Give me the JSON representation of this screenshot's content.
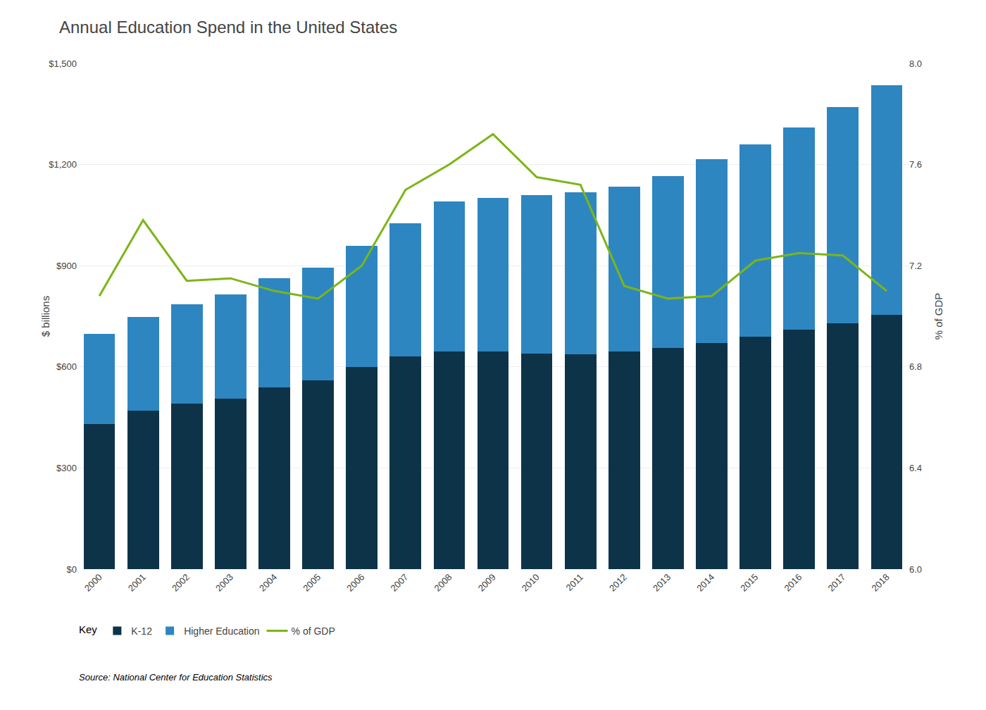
{
  "chart_data": {
    "type": "bar",
    "title": "Annual Education Spend in the United States",
    "source": "Source: National Center for Education Statistics",
    "legend_title": "Key",
    "categories": [
      "2000",
      "2001",
      "2002",
      "2003",
      "2004",
      "2005",
      "2006",
      "2007",
      "2008",
      "2009",
      "2010",
      "2011",
      "2012",
      "2013",
      "2014",
      "2015",
      "2016",
      "2017",
      "2018"
    ],
    "series": [
      {
        "name": "K-12",
        "color": "#0d3349",
        "values": [
          430,
          470,
          490,
          505,
          540,
          560,
          600,
          630,
          645,
          645,
          640,
          638,
          645,
          655,
          670,
          690,
          710,
          730,
          755
        ]
      },
      {
        "name": "Higher Education",
        "color": "#2e86c1",
        "values": [
          268,
          278,
          295,
          310,
          322,
          335,
          358,
          395,
          445,
          455,
          470,
          480,
          490,
          510,
          545,
          570,
          600,
          640,
          680
        ]
      },
      {
        "name": "% of GDP",
        "type": "line",
        "axis": "y2",
        "color": "#7cb518",
        "values": [
          7.08,
          7.38,
          7.14,
          7.15,
          7.1,
          7.07,
          7.2,
          7.5,
          7.6,
          7.72,
          7.55,
          7.52,
          7.12,
          7.07,
          7.08,
          7.22,
          7.25,
          7.24,
          7.1
        ]
      }
    ],
    "ylabel": "$ billions",
    "y2label": "% of GDP",
    "ylim": [
      0,
      1500
    ],
    "yticks": [
      {
        "value": 0,
        "label": "$0"
      },
      {
        "value": 300,
        "label": "$300"
      },
      {
        "value": 600,
        "label": "$600"
      },
      {
        "value": 900,
        "label": "$900"
      },
      {
        "value": 1200,
        "label": "$1,200"
      },
      {
        "value": 1500,
        "label": "$1,500"
      }
    ],
    "y2lim": [
      6.0,
      8.0
    ],
    "y2ticks": [
      {
        "value": 6.0,
        "label": "6.0"
      },
      6.4,
      6.8,
      7.2,
      7.6,
      {
        "value": 8.0,
        "label": "8.0"
      }
    ],
    "stacked": true,
    "grid": true,
    "legend": "bottom left"
  }
}
